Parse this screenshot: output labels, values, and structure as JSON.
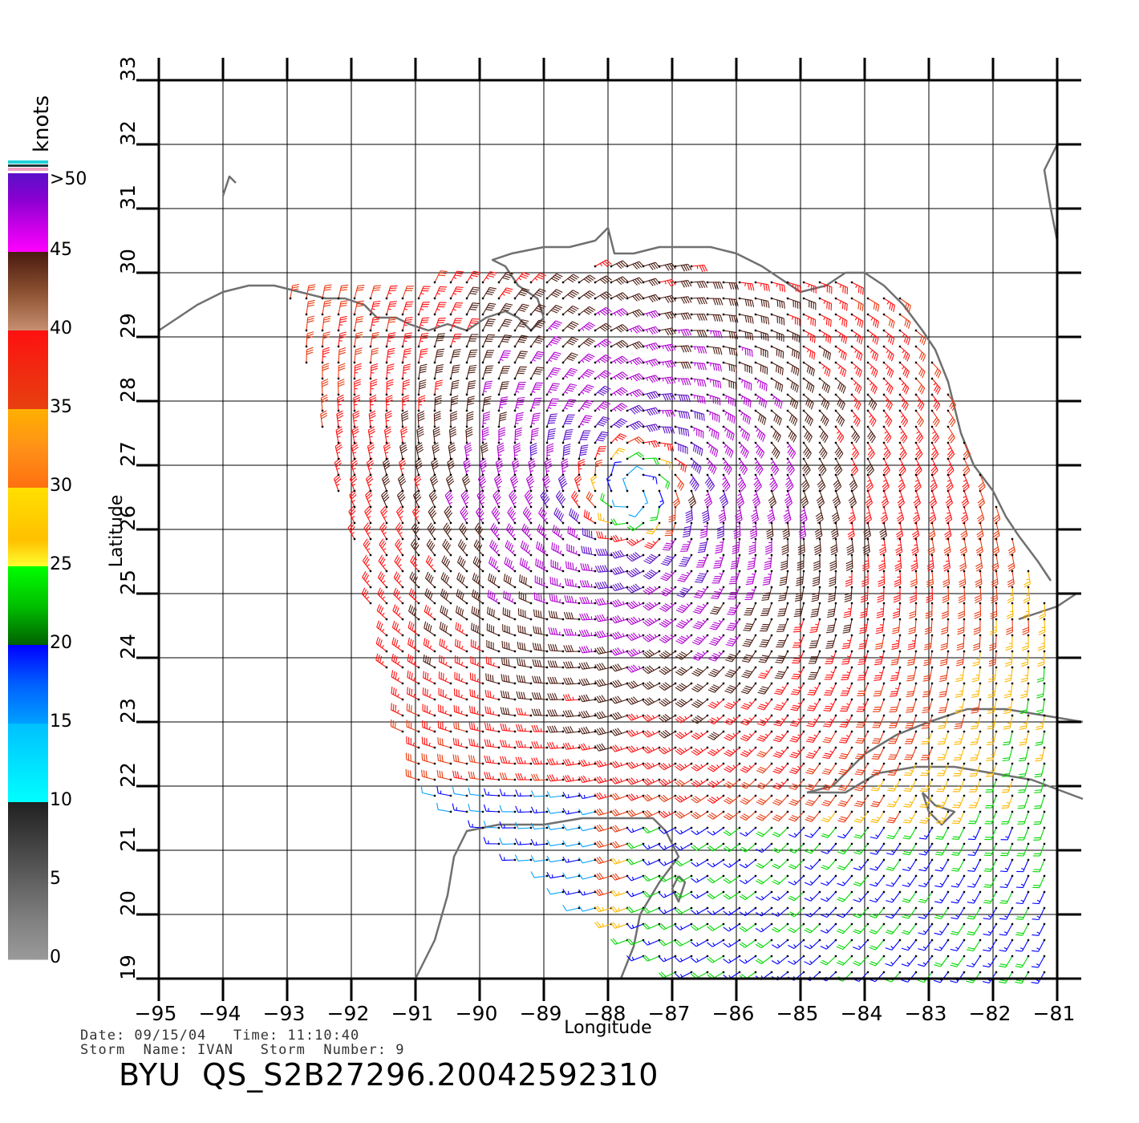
{
  "legend": {
    "unit_label": "knots",
    "stops": [
      {
        "label": ">50",
        "color": "#5a10c8"
      },
      {
        "label": "45",
        "color": "#b000d0"
      },
      {
        "label": "40",
        "color": "#4a1a10"
      },
      {
        "label": "35",
        "color": "#ff1010"
      },
      {
        "label": "30",
        "color": "#e83a10"
      },
      {
        "label": "25",
        "color": "#ffb800"
      },
      {
        "label": "20",
        "color": "#00d800"
      },
      {
        "label": "15",
        "color": "#0000ff"
      },
      {
        "label": "10",
        "color": "#00a0ff"
      },
      {
        "label": "5",
        "color": "#303030"
      },
      {
        "label": "0",
        "color": "#909090"
      }
    ]
  },
  "chart_data": {
    "type": "wind-barb-map",
    "xlabel": "Longitude",
    "ylabel": "Latitude",
    "xlim": [
      -95,
      -80.6
    ],
    "ylim": [
      19,
      33
    ],
    "x_ticks": [
      "−95",
      "−94",
      "−93",
      "−92",
      "−91",
      "−90",
      "−89",
      "−88",
      "−87",
      "−86",
      "−85",
      "−84",
      "−83",
      "−82",
      "−81"
    ],
    "y_ticks": [
      "19",
      "20",
      "21",
      "22",
      "23",
      "24",
      "25",
      "26",
      "27",
      "28",
      "29",
      "30",
      "31",
      "32",
      "33"
    ],
    "grid": true,
    "storm_center": {
      "lon": -87.6,
      "lat": 26.6
    },
    "swath_corners": [
      [
        -93.0,
        29.6
      ],
      [
        -87.5,
        30.2
      ],
      [
        -83.5,
        29.8
      ],
      [
        -91.0,
        22.0
      ],
      [
        -87.0,
        19.0
      ],
      [
        -81.0,
        19.0
      ],
      [
        -81.0,
        24.5
      ]
    ]
  },
  "info": {
    "date_line": "Date: 09/15/04   Time: 11:10:40",
    "storm_line": "Storm  Name: IVAN   Storm  Number: 9",
    "title": "BYU  QS_S2B27296.20042592310"
  }
}
